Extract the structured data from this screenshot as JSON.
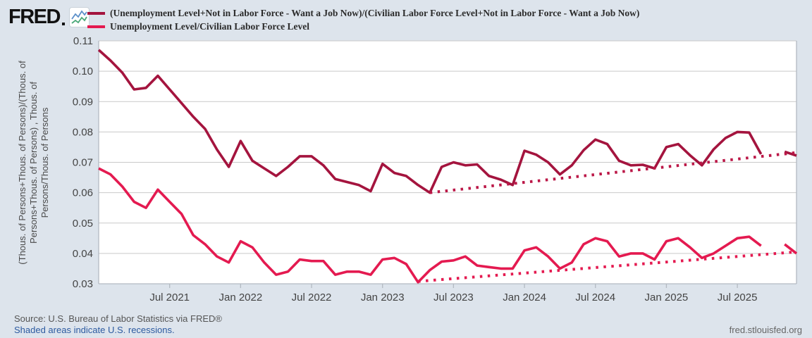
{
  "header": {
    "logo_text": "FRED",
    "legend": [
      {
        "label": "(Unemployment Level+Not in Labor Force - Want a Job Now)/(Civilian Labor Force Level+Not in Labor Force - Want a Job Now)",
        "color": "#a4143e"
      },
      {
        "label": "Unemployment Level/Civilian Labor Force Level",
        "color": "#e41a50"
      }
    ]
  },
  "y_axis_label": {
    "line1": "(Thous. of Persons+Thous. of Persons)/(Thous. of",
    "line2": "Persons+Thous. of Persons) , Thous. of",
    "line3": "Persons/Thous. of Persons"
  },
  "footer": {
    "source": "Source: U.S. Bureau of Labor Statistics via FRED®",
    "recessions_note": "Shaded areas indicate U.S. recessions.",
    "site": "fred.stlouisfed.org"
  },
  "chart_data": {
    "type": "line",
    "title": "",
    "xlabel": "",
    "ylabel": "(Thous. of Persons+Thous. of Persons)/(Thous. of Persons+Thous. of Persons) , Thous. of Persons/Thous. of Persons",
    "ylim": [
      0.03,
      0.11
    ],
    "grid": true,
    "legend_position": "top",
    "plot_colors": {
      "background": "#ffffff",
      "gridline": "#c9c9c9",
      "border": "#b3bac2",
      "tick_text": "#444444"
    },
    "y_ticks": [
      0.03,
      0.04,
      0.05,
      0.06,
      0.07,
      0.08,
      0.09,
      0.1,
      0.11
    ],
    "y_tick_labels": [
      "0.03",
      "0.04",
      "0.05",
      "0.06",
      "0.07",
      "0.08",
      "0.09",
      "0.10",
      "0.11"
    ],
    "x_tick_labels": [
      "Jul 2021",
      "Jan 2022",
      "Jul 2022",
      "Jan 2023",
      "Jul 2023",
      "Jan 2024",
      "Jul 2024",
      "Jan 2025",
      "Jul 2025"
    ],
    "x_tick_month_indices": [
      6,
      12,
      18,
      24,
      30,
      36,
      42,
      48,
      54
    ],
    "months": [
      "2021-01",
      "2021-02",
      "2021-03",
      "2021-04",
      "2021-05",
      "2021-06",
      "2021-07",
      "2021-08",
      "2021-09",
      "2021-10",
      "2021-11",
      "2021-12",
      "2022-01",
      "2022-02",
      "2022-03",
      "2022-04",
      "2022-05",
      "2022-06",
      "2022-07",
      "2022-08",
      "2022-09",
      "2022-10",
      "2022-11",
      "2022-12",
      "2023-01",
      "2023-02",
      "2023-03",
      "2023-04",
      "2023-05",
      "2023-06",
      "2023-07",
      "2023-08",
      "2023-09",
      "2023-10",
      "2023-11",
      "2023-12",
      "2024-01",
      "2024-02",
      "2024-03",
      "2024-04",
      "2024-05",
      "2024-06",
      "2024-07",
      "2024-08",
      "2024-09",
      "2024-10",
      "2024-11",
      "2024-12",
      "2025-01",
      "2025-02",
      "2025-03",
      "2025-04",
      "2025-05",
      "2025-06",
      "2025-07",
      "2025-08",
      "2025-09",
      "2025-10",
      "2025-11",
      "2025-12"
    ],
    "series": [
      {
        "name": "(Unemployment Level+Not in Labor Force - Want a Job Now)/(Civilian Labor Force Level+Not in Labor Force - Want a Job Now)",
        "style": "solid",
        "color": "#a4143e",
        "values": [
          0.107,
          0.1035,
          0.0995,
          0.094,
          0.0945,
          0.0985,
          0.094,
          0.0895,
          0.085,
          0.081,
          0.0742,
          0.0685,
          0.077,
          0.0705,
          0.068,
          0.0655,
          0.0685,
          0.072,
          0.072,
          0.069,
          0.0645,
          0.0635,
          0.0625,
          0.0605,
          0.0695,
          0.0665,
          0.0655,
          0.0625,
          0.06,
          0.0685,
          0.07,
          0.069,
          0.0693,
          0.0655,
          0.0643,
          0.0625,
          0.0738,
          0.0725,
          0.07,
          0.066,
          0.069,
          0.074,
          0.0775,
          0.076,
          0.0705,
          0.069,
          0.0692,
          0.068,
          0.075,
          0.076,
          0.0723,
          0.069,
          0.0743,
          0.078,
          0.08,
          0.0798,
          0.0727,
          null,
          0.0735,
          0.0722
        ]
      },
      {
        "name": "Unemployment Level/Civilian Labor Force Level",
        "style": "solid",
        "color": "#e41a50",
        "values": [
          0.068,
          0.066,
          0.062,
          0.057,
          0.055,
          0.061,
          0.057,
          0.053,
          0.046,
          0.043,
          0.039,
          0.037,
          0.044,
          0.042,
          0.037,
          0.033,
          0.034,
          0.038,
          0.0375,
          0.0375,
          0.033,
          0.034,
          0.034,
          0.033,
          0.038,
          0.0385,
          0.0365,
          0.0305,
          0.0345,
          0.0373,
          0.0377,
          0.039,
          0.036,
          0.0355,
          0.035,
          0.035,
          0.041,
          0.042,
          0.039,
          0.035,
          0.037,
          0.043,
          0.045,
          0.044,
          0.039,
          0.04,
          0.04,
          0.038,
          0.044,
          0.045,
          0.042,
          0.0385,
          0.04,
          0.0425,
          0.045,
          0.0455,
          0.0425,
          null,
          0.043,
          0.04
        ]
      },
      {
        "name": "Linear trend of (Unemployment Level+Not in Labor Force - Want a Job Now)/(Civilian Labor Force Level+Not in Labor Force - Want a Job Now)",
        "style": "dotted",
        "color": "#bb1747",
        "points": [
          {
            "month_index": 28,
            "value": 0.06
          },
          {
            "month_index": 59,
            "value": 0.0732
          }
        ]
      },
      {
        "name": "Linear trend of Unemployment Level/Civilian Labor Force Level",
        "style": "dotted",
        "color": "#e41a50",
        "points": [
          {
            "month_index": 27,
            "value": 0.0308
          },
          {
            "month_index": 59,
            "value": 0.0405
          }
        ]
      }
    ]
  }
}
